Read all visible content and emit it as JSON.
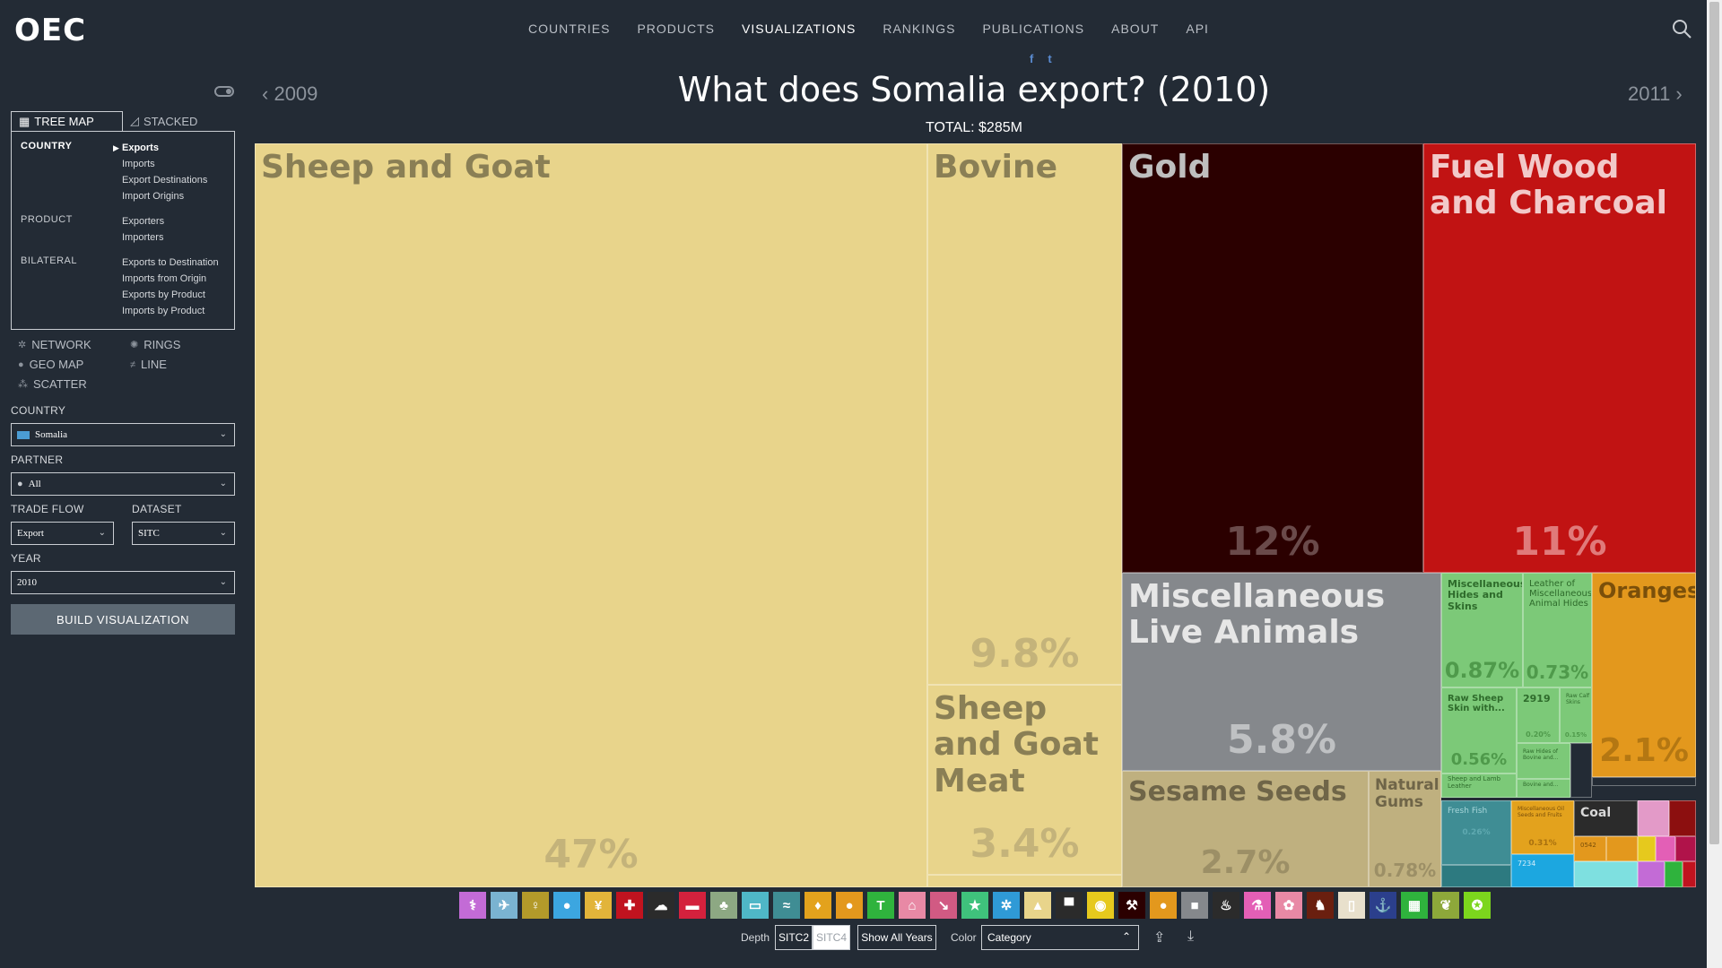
{
  "nav": {
    "logo": "OEC",
    "links": [
      "COUNTRIES",
      "PRODUCTS",
      "VISUALIZATIONS",
      "RANKINGS",
      "PUBLICATIONS",
      "ABOUT",
      "API"
    ],
    "active": "VISUALIZATIONS",
    "social": [
      "f",
      "t"
    ]
  },
  "header": {
    "prev_year": "2009",
    "next_year": "2011",
    "title": "What does Somalia export? (2010)",
    "total": "TOTAL: $285M"
  },
  "sidebar": {
    "tabs": {
      "treemap": "TREE MAP",
      "stacked": "STACKED"
    },
    "categories": {
      "country": "COUNTRY",
      "product": "PRODUCT",
      "bilateral": "BILATERAL"
    },
    "country_items": [
      "Exports",
      "Imports",
      "Export Destinations",
      "Import Origins"
    ],
    "product_items": [
      "Exporters",
      "Importers"
    ],
    "bilateral_items": [
      "Exports to Destination",
      "Imports from Origin",
      "Exports by Product",
      "Imports by Product"
    ],
    "vis_options": [
      "NETWORK",
      "RINGS",
      "GEO MAP",
      "LINE",
      "SCATTER"
    ],
    "fields": {
      "country_label": "COUNTRY",
      "country_value": "Somalia",
      "partner_label": "PARTNER",
      "partner_value": "All",
      "trade_flow_label": "TRADE FLOW",
      "trade_flow_value": "Export",
      "dataset_label": "DATASET",
      "dataset_value": "SITC",
      "year_label": "YEAR",
      "year_value": "2010"
    },
    "build_label": "BUILD VISUALIZATION"
  },
  "treemap": {
    "cells": [
      {
        "label": "Sheep and Goat",
        "pct": "47%",
        "color": "#e8d48b"
      },
      {
        "label": "Bovine",
        "pct": "9.8%",
        "color": "#e8d48b"
      },
      {
        "label": "Sheep and Goat Meat",
        "pct": "3.4%",
        "color": "#e8d48b"
      },
      {
        "label": "Gold",
        "pct": "12%",
        "color": "#2b0000"
      },
      {
        "label": "Fuel Wood and Charcoal",
        "pct": "11%",
        "color": "#c11313"
      },
      {
        "label": "Miscellaneous Live Animals",
        "pct": "5.8%",
        "color": "#85888c"
      },
      {
        "label": "Sesame Seeds",
        "pct": "2.7%",
        "color": "#bfb07f"
      },
      {
        "label": "Natural Gums",
        "pct": "0.78%",
        "color": "#bfb07f"
      },
      {
        "label": "Miscellaneous Hides and Skins",
        "pct": "0.87%",
        "color": "#7cc978"
      },
      {
        "label": "Leather of Miscellaneous Animal Hides",
        "pct": "0.73%",
        "color": "#7cc978"
      },
      {
        "label": "Raw Sheep Skin with...",
        "pct": "0.56%",
        "color": "#7cc978"
      },
      {
        "label": "2919",
        "pct": "0.20%",
        "color": "#7cc978"
      },
      {
        "label": "Raw Calf Skins",
        "pct": "0.15%",
        "color": "#7cc978"
      },
      {
        "label": "Raw Hides of Bovine and...",
        "pct": "",
        "color": "#7cc978"
      },
      {
        "label": "Sheep and Lamb Leather",
        "pct": "",
        "color": "#7cc978"
      },
      {
        "label": "Bovine and...",
        "pct": "",
        "color": "#7cc978"
      },
      {
        "label": "Oranges",
        "pct": "2.1%",
        "color": "#e3981d"
      },
      {
        "label": "Fresh Fish",
        "pct": "0.26%",
        "color": "#3f8d94"
      },
      {
        "label": "Miscellaneous Oil Seeds and Fruits",
        "pct": "0.31%",
        "color": "#e3a21d"
      },
      {
        "label": "7234",
        "pct": "",
        "color": "#1ca7e0"
      },
      {
        "label": "Coal",
        "pct": "",
        "color": "#2b2b2b"
      },
      {
        "label": "0542",
        "pct": "",
        "color": "#e3981d"
      }
    ]
  },
  "category_icons": [
    {
      "name": "lungs",
      "glyph": "⚕",
      "color": "#c36bd6"
    },
    {
      "name": "plane",
      "glyph": "✈",
      "color": "#7ab3d1"
    },
    {
      "name": "wine",
      "glyph": "♀",
      "color": "#b39a2a"
    },
    {
      "name": "drop",
      "glyph": "●",
      "color": "#3ca6e0"
    },
    {
      "name": "wheat",
      "glyph": "¥",
      "color": "#e2b43a"
    },
    {
      "name": "cross",
      "glyph": "✚",
      "color": "#c0131f"
    },
    {
      "name": "cloud",
      "glyph": "☁",
      "color": "#2b2b2b"
    },
    {
      "name": "band",
      "glyph": "▬",
      "color": "#d4213d"
    },
    {
      "name": "tree",
      "glyph": "♣",
      "color": "#8da883"
    },
    {
      "name": "monitor",
      "glyph": "▭",
      "color": "#4fb7c7"
    },
    {
      "name": "fish",
      "glyph": "≈",
      "color": "#3f8d94"
    },
    {
      "name": "bottle",
      "glyph": "♦",
      "color": "#e3a21d"
    },
    {
      "name": "fruit",
      "glyph": "●",
      "color": "#e3981d"
    },
    {
      "name": "shirt",
      "glyph": "T",
      "color": "#2fb33d"
    },
    {
      "name": "house",
      "glyph": "⌂",
      "color": "#e889a5"
    },
    {
      "name": "chart",
      "glyph": "↘",
      "color": "#d15a83"
    },
    {
      "name": "star",
      "glyph": "★",
      "color": "#3fc27c"
    },
    {
      "name": "gears",
      "glyph": "✲",
      "color": "#2f9ad6"
    },
    {
      "name": "animal",
      "glyph": "▲",
      "color": "#e8d48b"
    },
    {
      "name": "anvil",
      "glyph": "▀",
      "color": "#2b2b2b"
    },
    {
      "name": "coin",
      "glyph": "◉",
      "color": "#e6c91d"
    },
    {
      "name": "pick",
      "glyph": "⚒",
      "color": "#2b0000"
    },
    {
      "name": "orange",
      "glyph": "●",
      "color": "#e3981d"
    },
    {
      "name": "box",
      "glyph": "■",
      "color": "#85888c"
    },
    {
      "name": "oil",
      "glyph": "♨",
      "color": "#2b2b2b"
    },
    {
      "name": "flask",
      "glyph": "⚗",
      "color": "#e35fb6"
    },
    {
      "name": "flower",
      "glyph": "✿",
      "color": "#e889a5"
    },
    {
      "name": "boot",
      "glyph": "♞",
      "color": "#6a1f0f"
    },
    {
      "name": "paper",
      "glyph": "▯",
      "color": "#e8e0cc"
    },
    {
      "name": "anchor",
      "glyph": "⚓",
      "color": "#2b3f8c"
    },
    {
      "name": "grid",
      "glyph": "▦",
      "color": "#2fb33d"
    },
    {
      "name": "seed",
      "glyph": "❦",
      "color": "#8da83a"
    },
    {
      "name": "star2",
      "glyph": "✪",
      "color": "#7cd61d"
    }
  ],
  "controls": {
    "depth_label": "Depth",
    "depth_options": [
      "SITC2",
      "SITC4"
    ],
    "show_all_years": "Show All Years",
    "color_label": "Color",
    "color_value": "Category"
  }
}
